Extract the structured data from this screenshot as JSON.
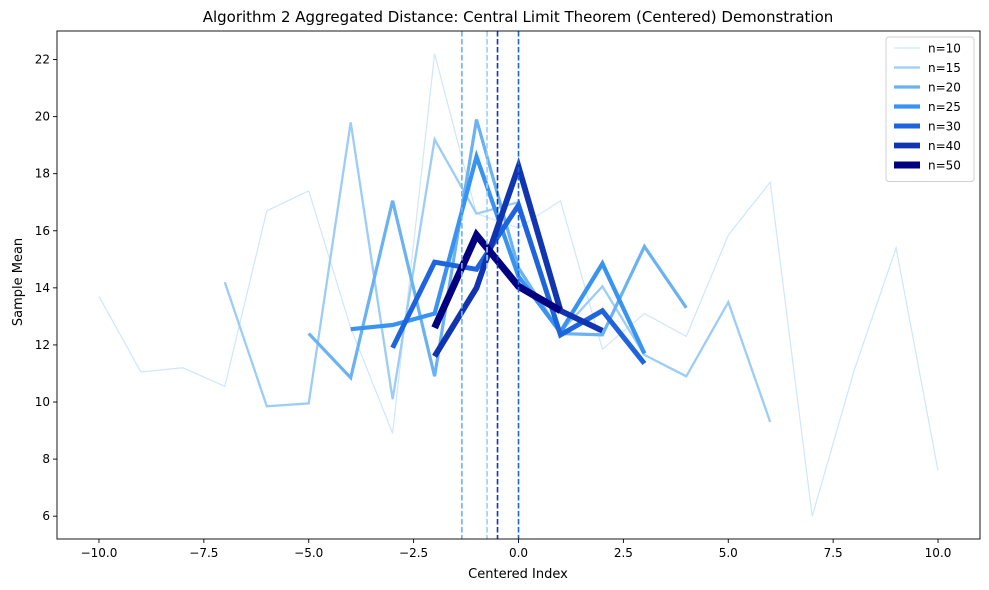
{
  "chart_data": {
    "type": "line",
    "title": "Algorithm 2 Aggregated Distance: Central Limit Theorem (Centered) Demonstration",
    "xlabel": "Centered Index",
    "ylabel": "Sample Mean",
    "xlim": [
      -11,
      11
    ],
    "ylim": [
      5.2,
      23.0
    ],
    "xticks": [
      -10.0,
      -7.5,
      -5.0,
      -2.5,
      0.0,
      2.5,
      5.0,
      7.5,
      10.0
    ],
    "xtick_labels": [
      "−10.0",
      "−7.5",
      "−5.0",
      "−2.5",
      "0.0",
      "2.5",
      "5.0",
      "7.5",
      "10.0"
    ],
    "yticks": [
      6,
      8,
      10,
      12,
      14,
      16,
      18,
      20,
      22
    ],
    "ytick_labels": [
      "6",
      "8",
      "10",
      "12",
      "14",
      "16",
      "18",
      "20",
      "22"
    ],
    "grid": false,
    "legend_position": "top-right",
    "series": [
      {
        "name": "n=10",
        "color": "#cfe6fb",
        "width": 1.2,
        "x": [
          -10,
          -9,
          -8,
          -7,
          -6,
          -5,
          -4,
          -3,
          -2,
          -1,
          0,
          1,
          2,
          3,
          4,
          5,
          6,
          7,
          8,
          9,
          10
        ],
        "y": [
          13.7,
          11.05,
          11.2,
          10.55,
          16.7,
          17.4,
          12.6,
          8.9,
          22.2,
          16.6,
          16.1,
          17.05,
          11.85,
          13.1,
          12.3,
          15.85,
          17.7,
          6.0,
          11.1,
          15.4,
          7.6
        ]
      },
      {
        "name": "n=15",
        "color": "#9ccdf7",
        "width": 2.3,
        "x": [
          -7,
          -6,
          -5,
          -4,
          -3,
          -2,
          -1,
          0,
          1,
          2,
          3,
          4,
          5,
          6
        ],
        "y": [
          14.2,
          9.85,
          9.95,
          19.8,
          10.1,
          19.2,
          16.6,
          17.0,
          12.45,
          14.05,
          11.65,
          10.9,
          13.5,
          9.3
        ]
      },
      {
        "name": "n=20",
        "color": "#6ab2f2",
        "width": 3.2,
        "x": [
          -5,
          -4,
          -3,
          -2,
          -1,
          0,
          1,
          2,
          3,
          4
        ],
        "y": [
          12.4,
          10.85,
          17.05,
          10.9,
          19.9,
          14.7,
          12.4,
          12.35,
          15.45,
          13.3
        ]
      },
      {
        "name": "n=25",
        "color": "#3894f0",
        "width": 4.2,
        "x": [
          -4,
          -3,
          -2,
          -1,
          0,
          1,
          2,
          3
        ],
        "y": [
          12.55,
          12.7,
          13.1,
          18.6,
          14.4,
          12.45,
          14.85,
          11.7
        ]
      },
      {
        "name": "n=30",
        "color": "#1e64dc",
        "width": 5.0,
        "x": [
          -3,
          -2,
          -1,
          0,
          1,
          2,
          3
        ],
        "y": [
          11.9,
          14.9,
          14.65,
          16.9,
          12.35,
          13.2,
          11.35
        ]
      },
      {
        "name": "n=40",
        "color": "#1134b0",
        "width": 5.8,
        "x": [
          -2,
          -1,
          0,
          1,
          2
        ],
        "y": [
          11.6,
          14.0,
          18.25,
          13.2,
          12.5
        ]
      },
      {
        "name": "n=50",
        "color": "#000080",
        "width": 7.0,
        "x": [
          -2,
          -1,
          0,
          1
        ],
        "y": [
          12.6,
          15.85,
          14.05,
          13.2
        ]
      }
    ],
    "vlines": [
      {
        "x": -1.35,
        "color": "#6ab2f2"
      },
      {
        "x": -0.75,
        "color": "#9ccdf7"
      },
      {
        "x": -0.5,
        "color": "#1134b0"
      },
      {
        "x": 0.0,
        "color": "#1e64dc"
      }
    ]
  }
}
